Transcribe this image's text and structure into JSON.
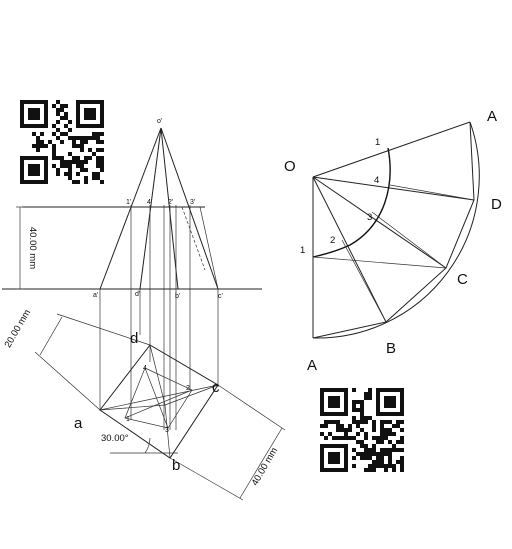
{
  "labels": {
    "apex_top": "o'",
    "mid_a": "a'",
    "mid_d": "d'",
    "mid_b": "b'",
    "mid_c": "c'",
    "sec_1": "1'",
    "sec_4": "4'",
    "sec_2": "2'",
    "sec_3": "3'",
    "plan_a": "a",
    "plan_b": "b",
    "plan_c": "c",
    "plan_d": "d",
    "plan_1": "1",
    "plan_2": "2",
    "plan_3": "3",
    "plan_4": "4",
    "dev_O": "O",
    "dev_A_top": "A",
    "dev_D": "D",
    "dev_C": "C",
    "dev_B": "B",
    "dev_A_bottom": "A",
    "dev_1_top": "1",
    "dev_4": "4",
    "dev_3": "3",
    "dev_2": "2",
    "dev_1_left": "1"
  },
  "dimensions": {
    "height": "40.00 mm",
    "width": "20.00 mm",
    "length": "40.00 mm",
    "angle": "30.00°"
  },
  "qr_codes": [
    "qr-code-top-left",
    "qr-code-bottom-right"
  ]
}
